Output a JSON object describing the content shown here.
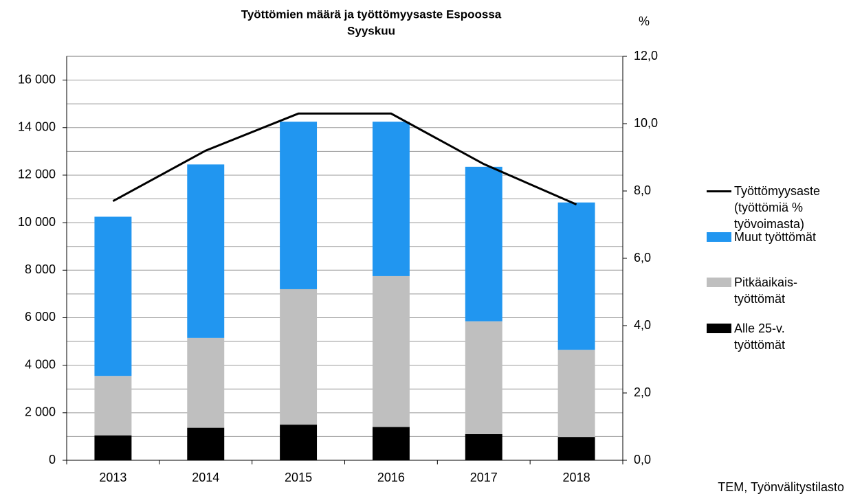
{
  "chart_data": {
    "type": "bar",
    "title": "Työttömien  määrä ja työttömyysaste  Espoossa",
    "subtitle": "Syyskuu",
    "y2label": "%",
    "source": "TEM, Työnvälitystilasto",
    "categories": [
      "2013",
      "2014",
      "2015",
      "2016",
      "2017",
      "2018"
    ],
    "series": [
      {
        "name": "Alle 25-v.\ntyöttömät",
        "color": "#000000",
        "values": [
          1050,
          1370,
          1500,
          1400,
          1100,
          980
        ]
      },
      {
        "name": "Pitkäaikais-\ntyöttömät",
        "color": "#bfbfbf",
        "values": [
          2500,
          3780,
          5700,
          6350,
          4750,
          3670
        ]
      },
      {
        "name": "Muut työttömät",
        "color": "#2196f0",
        "values": [
          6700,
          7300,
          7050,
          6500,
          6500,
          6200
        ]
      },
      {
        "name": "Työttömyysaste\n(työttömiä %\ntyövoimasta)",
        "color": "#000000",
        "type": "line",
        "axis": "y2",
        "values": [
          7.7,
          9.2,
          10.3,
          10.3,
          8.8,
          7.6
        ]
      }
    ],
    "ylim": [
      0,
      17000
    ],
    "yticks": [
      0,
      {
        "value": 2000,
        "label": "2 000"
      },
      {
        "value": 4000,
        "label": "4 000"
      },
      {
        "value": 6000,
        "label": "6 000"
      },
      {
        "value": 8000,
        "label": "8 000"
      },
      {
        "value": 10000,
        "label": "10 000"
      },
      {
        "value": 12000,
        "label": "12 000"
      },
      {
        "value": 14000,
        "label": "14 000"
      },
      {
        "value": 16000,
        "label": "16 000"
      }
    ],
    "yminorticks": [
      1000,
      3000,
      5000,
      7000,
      9000,
      11000,
      13000,
      15000,
      17000
    ],
    "y2lim": [
      0,
      12
    ],
    "y2ticks": [
      {
        "value": 0,
        "label": "0,0"
      },
      {
        "value": 2,
        "label": "2,0"
      },
      {
        "value": 4,
        "label": "4,0"
      },
      {
        "value": 6,
        "label": "6,0"
      },
      {
        "value": 8,
        "label": "8,0"
      },
      {
        "value": 10,
        "label": "10,0"
      },
      {
        "value": 12,
        "label": "12,0"
      }
    ],
    "grid": true
  }
}
